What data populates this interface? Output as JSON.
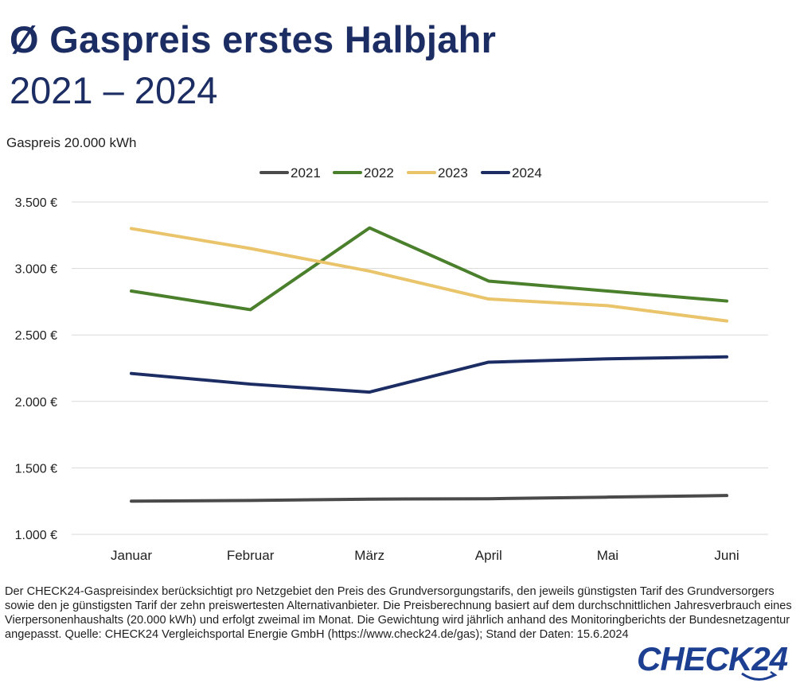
{
  "title": {
    "line1": "Ø Gaspreis erstes Halbjahr",
    "line2": "2021 – 2024"
  },
  "unit_label": "Gaspreis 20.000 kWh",
  "footnote": {
    "text": "Der CHECK24-Gaspreisindex berücksichtigt pro Netzgebiet den Preis des Grundversorgungstarifs, den jeweils günstigsten Tarif des Grundversorgers sowie den je günstigsten Tarif der zehn preiswertesten Alternativanbieter. Die Preisberechnung basiert auf dem durchschnittlichen Jahresverbrauch eines Vierpersonenhaushalts (20.000 kWh) und erfolgt zweimal im Monat. Die Gewichtung wird jährlich anhand des Monitoringberichts der Bundesnetzagentur angepasst.",
    "source": "Quelle: CHECK24 Vergleichsportal Energie GmbH (https://www.check24.de/gas);  Stand der Daten: 15.6.2024"
  },
  "logo_text": "CHECK24",
  "chart_data": {
    "type": "line",
    "categories": [
      "Januar",
      "Februar",
      "März",
      "April",
      "Mai",
      "Juni"
    ],
    "ylim": [
      1000,
      3500
    ],
    "yticks": [
      1000,
      1500,
      2000,
      2500,
      3000,
      3500
    ],
    "ytick_labels": [
      "1.000 €",
      "1.500 €",
      "2.000 €",
      "2.500 €",
      "3.000 €",
      "3.500 €"
    ],
    "grid": true,
    "legend_position": "top-center",
    "series": [
      {
        "name": "2021",
        "color": "#4a4a4a",
        "values": [
          1250,
          1255,
          1265,
          1268,
          1280,
          1292
        ]
      },
      {
        "name": "2022",
        "color": "#4a7f2c",
        "values": [
          2830,
          2690,
          3305,
          2905,
          2830,
          2755
        ]
      },
      {
        "name": "2023",
        "color": "#eac46a",
        "values": [
          3300,
          3150,
          2980,
          2770,
          2720,
          2605
        ]
      },
      {
        "name": "2024",
        "color": "#1c2d63",
        "values": [
          2210,
          2130,
          2070,
          2295,
          2320,
          2335
        ]
      }
    ]
  }
}
